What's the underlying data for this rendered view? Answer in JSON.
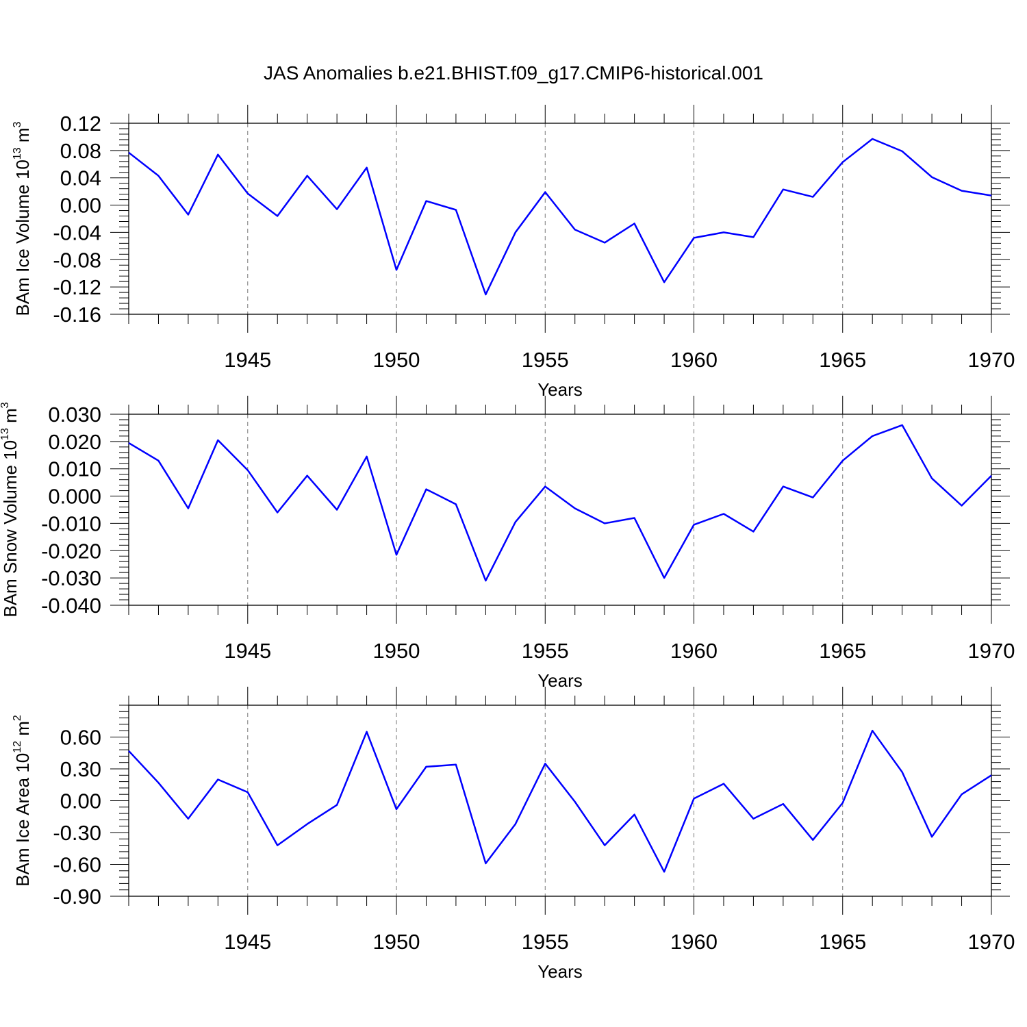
{
  "figure": {
    "title": "JAS Anomalies b.e21.BHIST.f09_g17.CMIP6-historical.001",
    "line_color": "#0000ff"
  },
  "chart_data": [
    {
      "type": "line",
      "title": "",
      "xlabel": "Years",
      "ylabel": "BAm Ice Volume 10^13 m^3",
      "ylabel_parts": {
        "base": "BAm Ice Volume 10",
        "exp1": "13",
        "unit": " m",
        "exp2": "3"
      },
      "xlim": [
        1941,
        1970
      ],
      "ylim": [
        -0.16,
        0.12
      ],
      "xticks": [
        1945,
        1950,
        1955,
        1960,
        1965,
        1970
      ],
      "yticks": [
        0.12,
        0.08,
        0.04,
        0.0,
        -0.04,
        -0.08,
        -0.12,
        -0.16
      ],
      "ytick_labels": [
        "0.12",
        "0.08",
        "0.04",
        "0.00",
        "-0.04",
        "-0.08",
        "-0.12",
        "-0.16"
      ],
      "grid": "vertical dashed at major x ticks",
      "x": [
        1941,
        1942,
        1943,
        1944,
        1945,
        1946,
        1947,
        1948,
        1949,
        1950,
        1951,
        1952,
        1953,
        1954,
        1955,
        1956,
        1957,
        1958,
        1959,
        1960,
        1961,
        1962,
        1963,
        1964,
        1965,
        1966,
        1967,
        1968,
        1969,
        1970
      ],
      "series": [
        {
          "values": [
            0.077,
            0.043,
            -0.014,
            0.074,
            0.017,
            -0.016,
            0.043,
            -0.006,
            0.055,
            -0.095,
            0.006,
            -0.007,
            -0.131,
            -0.04,
            0.019,
            -0.036,
            -0.055,
            -0.027,
            -0.113,
            -0.048,
            -0.04,
            -0.047,
            0.023,
            0.012,
            0.063,
            0.097,
            0.079,
            0.041,
            0.021,
            0.014
          ]
        }
      ]
    },
    {
      "type": "line",
      "title": "",
      "xlabel": "Years",
      "ylabel": "BAm Snow Volume 10^13 m^3",
      "ylabel_parts": {
        "base": "BAm Snow Volume 10",
        "exp1": "13",
        "unit": " m",
        "exp2": "3"
      },
      "xlim": [
        1941,
        1970
      ],
      "ylim": [
        -0.04,
        0.03
      ],
      "xticks": [
        1945,
        1950,
        1955,
        1960,
        1965,
        1970
      ],
      "yticks": [
        0.03,
        0.02,
        0.01,
        0.0,
        -0.01,
        -0.02,
        -0.03,
        -0.04
      ],
      "ytick_labels": [
        "0.030",
        "0.020",
        "0.010",
        "0.000",
        "-0.010",
        "-0.020",
        "-0.030",
        "-0.040"
      ],
      "grid": "vertical dashed at major x ticks",
      "x": [
        1941,
        1942,
        1943,
        1944,
        1945,
        1946,
        1947,
        1948,
        1949,
        1950,
        1951,
        1952,
        1953,
        1954,
        1955,
        1956,
        1957,
        1958,
        1959,
        1960,
        1961,
        1962,
        1963,
        1964,
        1965,
        1966,
        1967,
        1968,
        1969,
        1970
      ],
      "series": [
        {
          "values": [
            0.0195,
            0.013,
            -0.0045,
            0.0205,
            0.0095,
            -0.006,
            0.0075,
            -0.005,
            0.0145,
            -0.0215,
            0.0025,
            -0.003,
            -0.031,
            -0.0095,
            0.0035,
            -0.0045,
            -0.01,
            -0.008,
            -0.03,
            -0.0105,
            -0.0065,
            -0.013,
            0.0035,
            -0.0005,
            0.013,
            0.022,
            0.026,
            0.0065,
            -0.0035,
            0.0075
          ]
        }
      ]
    },
    {
      "type": "line",
      "title": "",
      "xlabel": "Years",
      "ylabel": "BAm Ice Area 10^12 m^2",
      "ylabel_parts": {
        "base": "BAm Ice Area 10",
        "exp1": "12",
        "unit": " m",
        "exp2": "2"
      },
      "xlim": [
        1941,
        1970
      ],
      "ylim": [
        -0.9,
        0.9
      ],
      "xticks": [
        1945,
        1950,
        1955,
        1960,
        1965,
        1970
      ],
      "yticks": [
        0.6,
        0.3,
        0.0,
        -0.3,
        -0.6,
        -0.9
      ],
      "ytick_labels": [
        "0.60",
        "0.30",
        "0.00",
        "-0.30",
        "-0.60",
        "-0.90"
      ],
      "grid": "vertical dashed at major x ticks",
      "x": [
        1941,
        1942,
        1943,
        1944,
        1945,
        1946,
        1947,
        1948,
        1949,
        1950,
        1951,
        1952,
        1953,
        1954,
        1955,
        1956,
        1957,
        1958,
        1959,
        1960,
        1961,
        1962,
        1963,
        1964,
        1965,
        1966,
        1967,
        1968,
        1969,
        1970
      ],
      "series": [
        {
          "values": [
            0.47,
            0.17,
            -0.17,
            0.2,
            0.08,
            -0.42,
            -0.22,
            -0.04,
            0.65,
            -0.08,
            0.32,
            0.34,
            -0.59,
            -0.22,
            0.35,
            -0.01,
            -0.42,
            -0.13,
            -0.67,
            0.02,
            0.16,
            -0.17,
            -0.03,
            -0.37,
            -0.02,
            0.66,
            0.27,
            -0.34,
            0.06,
            0.24
          ]
        }
      ]
    }
  ]
}
